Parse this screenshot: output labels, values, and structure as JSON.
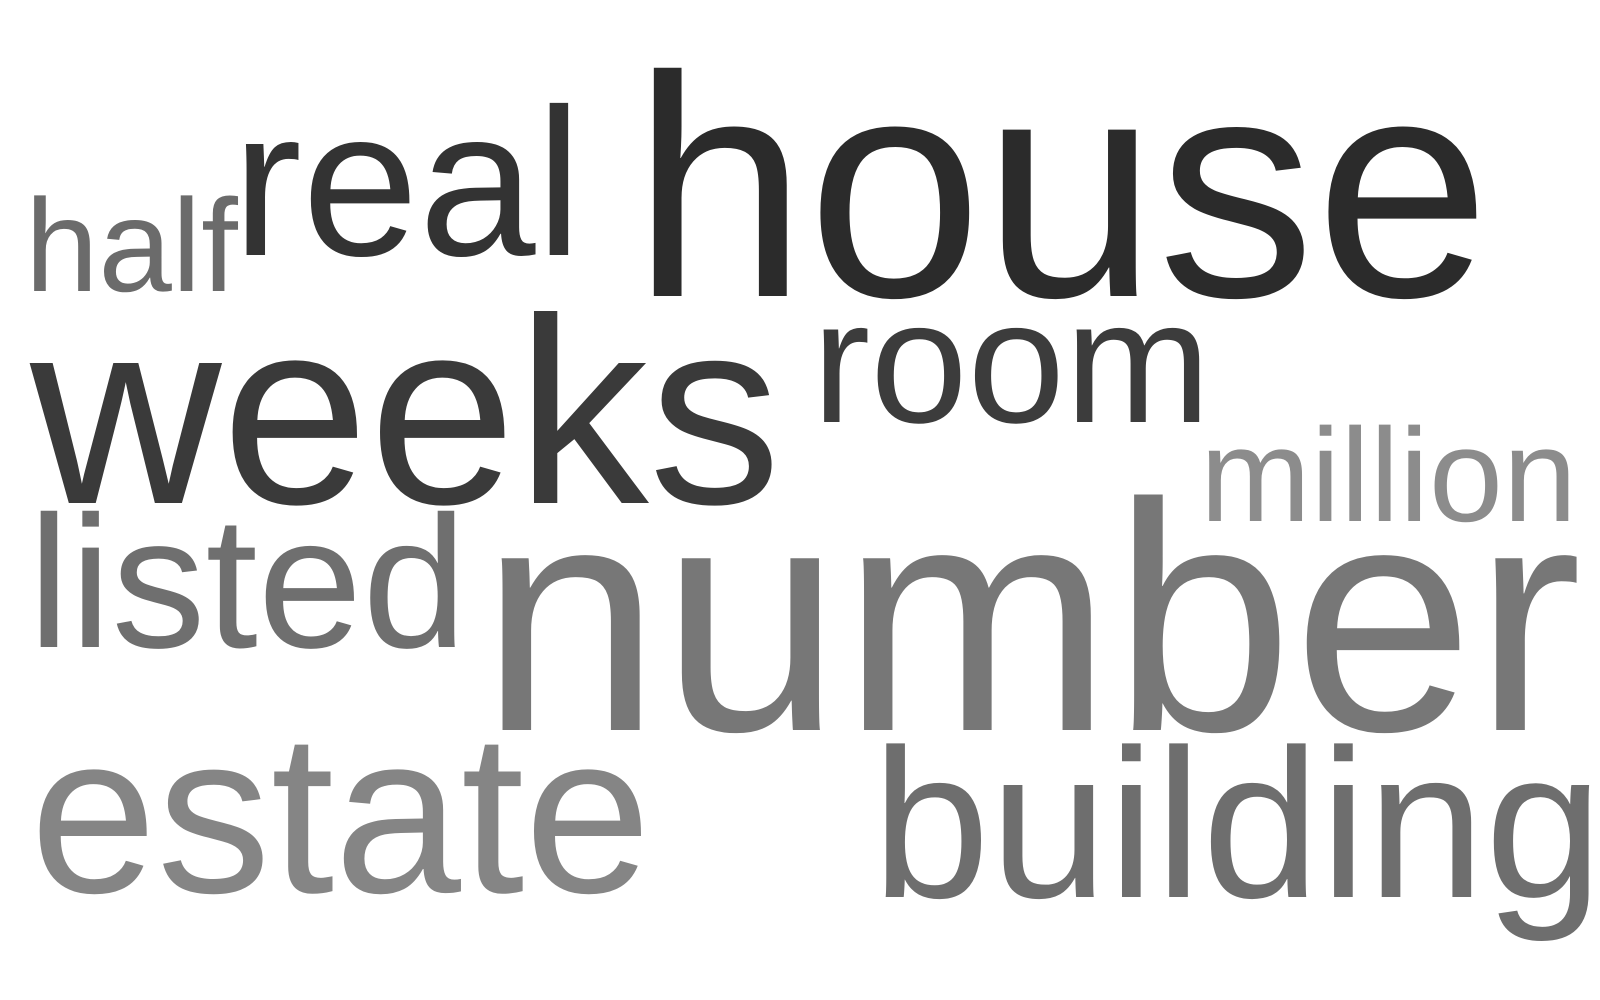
{
  "words": [
    {
      "key": "house",
      "text": "house",
      "color": "#2b2b2b"
    },
    {
      "key": "number",
      "text": "number",
      "color": "#777777"
    },
    {
      "key": "weeks",
      "text": "weeks",
      "color": "#3a3a3a"
    },
    {
      "key": "real",
      "text": "real",
      "color": "#333333"
    },
    {
      "key": "estate",
      "text": "estate",
      "color": "#858585"
    },
    {
      "key": "building",
      "text": "building",
      "color": "#6e6e6e"
    },
    {
      "key": "room",
      "text": "room",
      "color": "#3c3c3c"
    },
    {
      "key": "listed",
      "text": "listed",
      "color": "#6f6f6f"
    },
    {
      "key": "million",
      "text": "million",
      "color": "#8c8c8c"
    },
    {
      "key": "half",
      "text": "half",
      "color": "#6b6b6b"
    }
  ]
}
